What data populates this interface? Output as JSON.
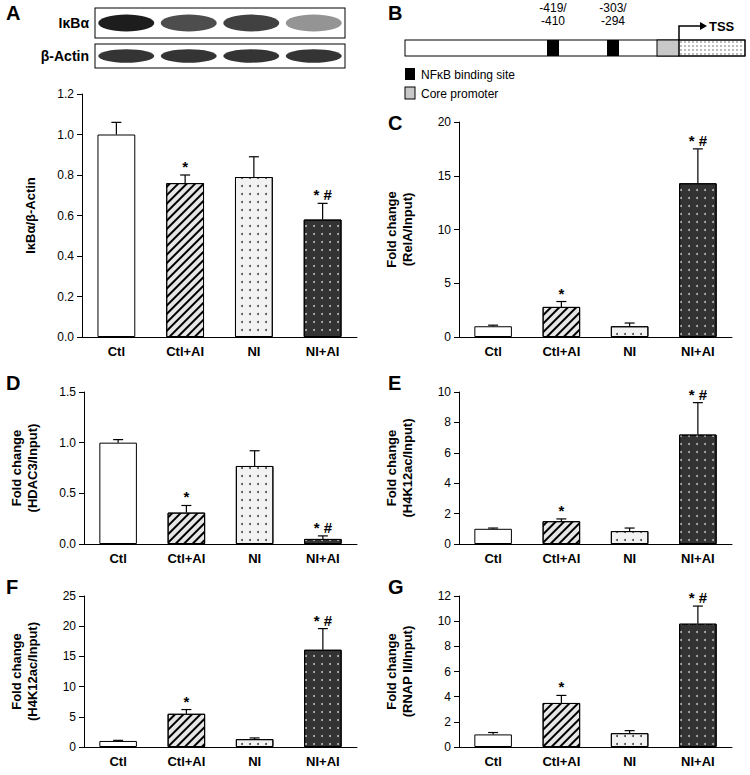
{
  "chart_data": [
    {
      "type": "bar",
      "categories": [
        "Ctl",
        "Ctl+AI",
        "NI",
        "NI+AI"
      ],
      "values": [
        1.0,
        0.76,
        0.79,
        0.58
      ],
      "errors": [
        0.06,
        0.04,
        0.1,
        0.08
      ],
      "annotations": [
        null,
        "*",
        null,
        "* #"
      ],
      "colors": [
        "#ffffff",
        "#e6e6e6",
        "#f2f2f2",
        "#333333"
      ],
      "ylabel": "IκBα/β-Actin",
      "ylim": [
        0,
        1.2
      ],
      "yticks": [
        {
          "value": 0,
          "label": "0.0"
        },
        0.2,
        0.4,
        0.6,
        0.8,
        {
          "value": 1,
          "label": "1.0"
        },
        1.2
      ]
    },
    {
      "panel": "C",
      "type": "bar",
      "categories": [
        "Ctl",
        "Ctl+AI",
        "NI",
        "NI+AI"
      ],
      "values": [
        1.0,
        2.8,
        1.0,
        14.3
      ],
      "errors": [
        0.1,
        0.5,
        0.3,
        3.2
      ],
      "annotations": [
        null,
        "*",
        null,
        "* #"
      ],
      "colors": [
        "#ffffff",
        "#e6e6e6",
        "#f2f2f2",
        "#333333"
      ],
      "ylabel": "Fold change\n(RelA/Input)",
      "ylim": [
        0,
        20
      ],
      "yticks": [
        0,
        5,
        10,
        15,
        20
      ]
    },
    {
      "panel": "D",
      "type": "bar",
      "categories": [
        "Ctl",
        "Ctl+AI",
        "NI",
        "NI+AI"
      ],
      "values": [
        1.0,
        0.31,
        0.77,
        0.05
      ],
      "errors": [
        0.03,
        0.07,
        0.15,
        0.03
      ],
      "annotations": [
        null,
        "*",
        null,
        "* #"
      ],
      "colors": [
        "#ffffff",
        "#e6e6e6",
        "#f2f2f2",
        "#333333"
      ],
      "ylabel": "Fold change\n(HDAC3/Input)",
      "ylim": [
        0,
        1.5
      ],
      "yticks": [
        {
          "value": 0,
          "label": "0.0"
        },
        0.5,
        {
          "value": 1,
          "label": "1.0"
        },
        1.5
      ]
    },
    {
      "panel": "E",
      "type": "bar",
      "categories": [
        "Ctl",
        "Ctl+AI",
        "NI",
        "NI+AI"
      ],
      "values": [
        1.0,
        1.5,
        0.85,
        7.2
      ],
      "errors": [
        0.05,
        0.15,
        0.2,
        2.1
      ],
      "annotations": [
        null,
        "*",
        null,
        "* #"
      ],
      "colors": [
        "#ffffff",
        "#e6e6e6",
        "#f2f2f2",
        "#333333"
      ],
      "ylabel": "Fold change\n(H4K12ac/Input)",
      "ylim": [
        0,
        10
      ],
      "yticks": [
        0,
        2,
        4,
        6,
        8,
        10
      ]
    },
    {
      "panel": "F",
      "type": "bar",
      "categories": [
        "Ctl",
        "Ctl+AI",
        "NI",
        "NI+AI"
      ],
      "values": [
        1.0,
        5.5,
        1.3,
        16.1
      ],
      "errors": [
        0.1,
        0.7,
        0.2,
        3.5
      ],
      "annotations": [
        null,
        "*",
        null,
        "* #"
      ],
      "colors": [
        "#ffffff",
        "#e6e6e6",
        "#f2f2f2",
        "#333333"
      ],
      "ylabel": "Fold change\n(H4K12ac/Input)",
      "ylim": [
        0,
        25
      ],
      "yticks": [
        0,
        5,
        10,
        15,
        20,
        25
      ]
    },
    {
      "panel": "G",
      "type": "bar",
      "categories": [
        "Ctl",
        "Ctl+AI",
        "NI",
        "NI+AI"
      ],
      "values": [
        1.0,
        3.5,
        1.1,
        9.8
      ],
      "errors": [
        0.15,
        0.6,
        0.2,
        1.4
      ],
      "annotations": [
        null,
        "*",
        null,
        "* #"
      ],
      "colors": [
        "#ffffff",
        "#e6e6e6",
        "#f2f2f2",
        "#333333"
      ],
      "ylabel": "Fold change\n(RNAP II/Input)",
      "ylim": [
        0,
        12
      ],
      "yticks": [
        0,
        2,
        4,
        6,
        8,
        10,
        12
      ]
    }
  ],
  "blot": {
    "panel": "A",
    "rows": [
      "IκBα",
      "β-Actin"
    ]
  },
  "diagram": {
    "panel": "B",
    "sites": [
      "-419/-410",
      "-303/-294"
    ],
    "tss": "TSS",
    "legend_items": [
      "NFκB binding site",
      "Core promoter"
    ]
  }
}
